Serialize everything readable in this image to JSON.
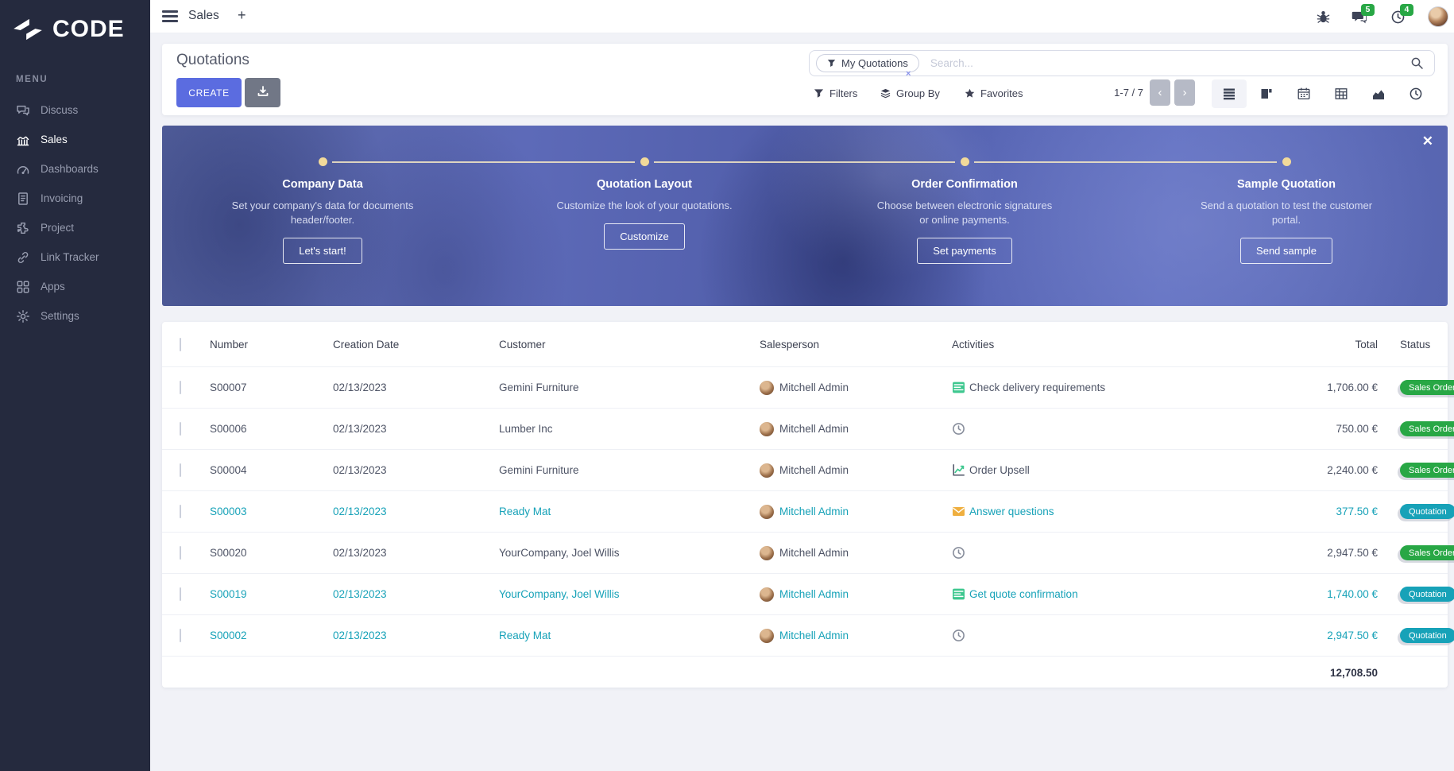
{
  "colors": {
    "accent": "#5b6ce0",
    "teal": "#17a2b8",
    "green": "#28a745",
    "sidebar_bg": "#252a3e"
  },
  "sidebar": {
    "logo_text": "CODE",
    "menu_label": "MENU",
    "items": [
      {
        "label": "Discuss",
        "icon": "discuss-icon",
        "active": false
      },
      {
        "label": "Sales",
        "icon": "sales-icon",
        "active": true
      },
      {
        "label": "Dashboards",
        "icon": "dashboards-icon",
        "active": false
      },
      {
        "label": "Invoicing",
        "icon": "invoicing-icon",
        "active": false
      },
      {
        "label": "Project",
        "icon": "project-icon",
        "active": false
      },
      {
        "label": "Link Tracker",
        "icon": "link-icon",
        "active": false
      },
      {
        "label": "Apps",
        "icon": "apps-icon",
        "active": false
      },
      {
        "label": "Settings",
        "icon": "settings-icon",
        "active": false
      }
    ]
  },
  "topbar": {
    "title": "Sales",
    "new_tab": "+",
    "messages_badge": "5",
    "activities_badge": "4"
  },
  "control_panel": {
    "title": "Quotations",
    "create_label": "CREATE",
    "filter_chip": "My Quotations",
    "chip_remove": "×",
    "search_placeholder": "Search...",
    "filters_label": "Filters",
    "group_by_label": "Group By",
    "favorites_label": "Favorites",
    "pager": "1-7 / 7",
    "prev": "‹",
    "next": "›",
    "views": [
      {
        "name": "list",
        "icon": "list-view-icon",
        "active": true
      },
      {
        "name": "kanban",
        "icon": "kanban-view-icon",
        "active": false
      },
      {
        "name": "calendar",
        "icon": "calendar-view-icon",
        "active": false
      },
      {
        "name": "pivot",
        "icon": "pivot-view-icon",
        "active": false
      },
      {
        "name": "graph",
        "icon": "graph-view-icon",
        "active": false
      },
      {
        "name": "activity",
        "icon": "activity-view-icon",
        "active": false
      }
    ]
  },
  "banner": {
    "close": "✕",
    "steps": [
      {
        "title": "Company Data",
        "description": "Set your company's data for documents header/footer.",
        "button": "Let's start!"
      },
      {
        "title": "Quotation Layout",
        "description": "Customize the look of your quotations.",
        "button": "Customize"
      },
      {
        "title": "Order Confirmation",
        "description": "Choose between electronic signatures or online payments.",
        "button": "Set payments"
      },
      {
        "title": "Sample Quotation",
        "description": "Send a quotation to test the customer portal.",
        "button": "Send sample"
      }
    ]
  },
  "table": {
    "columns": [
      "Number",
      "Creation Date",
      "Customer",
      "Salesperson",
      "Activities",
      "Total",
      "Status"
    ],
    "rows": [
      {
        "number": "S00007",
        "creation_date": "02/13/2023",
        "customer": "Gemini Furniture",
        "salesperson": "Mitchell Admin",
        "activity_icon": "tasks-activity-icon",
        "activity_label": "Check delivery requirements",
        "total": "1,706.00 €",
        "status": "Sales Order",
        "status_color": "green",
        "highlighted": false
      },
      {
        "number": "S00006",
        "creation_date": "02/13/2023",
        "customer": "Lumber Inc",
        "salesperson": "Mitchell Admin",
        "activity_icon": "clock-activity-icon",
        "activity_label": "",
        "total": "750.00 €",
        "status": "Sales Order",
        "status_color": "green",
        "highlighted": false
      },
      {
        "number": "S00004",
        "creation_date": "02/13/2023",
        "customer": "Gemini Furniture",
        "salesperson": "Mitchell Admin",
        "activity_icon": "chart-activity-icon",
        "activity_label": "Order Upsell",
        "total": "2,240.00 €",
        "status": "Sales Order",
        "status_color": "green",
        "highlighted": false
      },
      {
        "number": "S00003",
        "creation_date": "02/13/2023",
        "customer": "Ready Mat",
        "salesperson": "Mitchell Admin",
        "activity_icon": "envelope-activity-icon",
        "activity_label": "Answer questions",
        "total": "377.50 €",
        "status": "Quotation",
        "status_color": "teal",
        "highlighted": true
      },
      {
        "number": "S00020",
        "creation_date": "02/13/2023",
        "customer": "YourCompany, Joel Willis",
        "salesperson": "Mitchell Admin",
        "activity_icon": "clock-activity-icon",
        "activity_label": "",
        "total": "2,947.50 €",
        "status": "Sales Order",
        "status_color": "green",
        "highlighted": false
      },
      {
        "number": "S00019",
        "creation_date": "02/13/2023",
        "customer": "YourCompany, Joel Willis",
        "salesperson": "Mitchell Admin",
        "activity_icon": "tasks-activity-icon",
        "activity_label": "Get quote confirmation",
        "total": "1,740.00 €",
        "status": "Quotation",
        "status_color": "teal",
        "highlighted": true
      },
      {
        "number": "S00002",
        "creation_date": "02/13/2023",
        "customer": "Ready Mat",
        "salesperson": "Mitchell Admin",
        "activity_icon": "clock-activity-icon",
        "activity_label": "",
        "total": "2,947.50 €",
        "status": "Quotation",
        "status_color": "teal",
        "highlighted": true
      }
    ],
    "footer_total": "12,708.50"
  }
}
